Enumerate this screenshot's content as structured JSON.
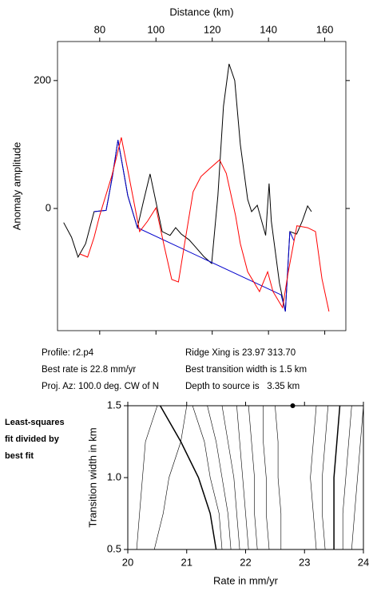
{
  "chart_data": [
    {
      "type": "line",
      "xlabel": "Distance (km)",
      "ylabel": "Anomaly amplitude",
      "xlim": [
        65,
        167.5
      ],
      "ylim": [
        -191,
        261
      ],
      "xticks": [
        80,
        100,
        120,
        140,
        160
      ],
      "yticks": [
        0,
        200
      ],
      "series": [
        {
          "color": "#000000",
          "x": [
            67.2,
            70,
            72.3,
            75,
            78,
            82.3,
            84.5,
            86.5,
            88,
            90,
            93.4,
            95.5,
            97.9,
            100,
            102.2,
            104,
            105,
            107,
            109,
            111.8,
            114,
            117,
            119.8,
            122,
            124,
            126,
            128,
            130,
            132.6,
            134,
            136,
            139,
            140.2,
            141,
            143.9,
            146,
            147.6,
            150,
            152,
            153.9,
            155.3
          ],
          "values": [
            -22,
            -45,
            -76,
            -55,
            -5,
            -3,
            50,
            107,
            70,
            20,
            -30,
            10,
            54,
            10,
            -36,
            -40,
            -42,
            -30,
            -40,
            -49,
            -60,
            -75,
            -86,
            20,
            160,
            226,
            200,
            100,
            14,
            -5,
            5,
            -42,
            39,
            -20,
            -117,
            -161,
            -36,
            -40,
            -20,
            4,
            -5
          ]
        },
        {
          "color": "#0000cc",
          "x": [
            78,
            82.3,
            84.5,
            86.5,
            88,
            90,
            93.4,
            144.5,
            146,
            147.6,
            149
          ],
          "values": [
            -5,
            -3,
            50,
            107,
            70,
            20,
            -30,
            -135,
            -161,
            -36,
            -50
          ]
        },
        {
          "color": "#ff0000",
          "x": [
            72.9,
            75.7,
            78,
            80,
            84.3,
            87.7,
            90,
            94.2,
            97,
            100,
            103,
            105.6,
            108,
            110,
            113.2,
            116,
            119,
            122.6,
            125,
            128.3,
            130,
            132.6,
            136.8,
            139.7,
            141.6,
            145,
            147,
            150.1,
            153.9,
            156.7,
            159,
            161.5
          ],
          "values": [
            -71,
            -76,
            -45,
            -11,
            51,
            111,
            60,
            -36,
            -20,
            1,
            -60,
            -111,
            -115,
            -60,
            26,
            50,
            62,
            76,
            55,
            -11,
            -55,
            -99,
            -130,
            -99,
            -130,
            -155,
            -100,
            -27,
            -30,
            -36,
            -110,
            -161
          ]
        }
      ],
      "info": [
        "Profile: r2.p4",
        "Best rate is 22.8 mm/yr",
        "Proj. Az: 100.0 deg. CW of N",
        "Ridge Xing is 23.97 313.70",
        "Best transition width is 1.5 km",
        "Depth to source is   3.35 km"
      ],
      "side_label": [
        "Least-squares",
        "fit divided by",
        "best fit"
      ]
    },
    {
      "type": "contour",
      "xlabel": "Rate in mm/yr",
      "ylabel": "Transition width in km",
      "xlim": [
        20,
        24
      ],
      "ylim": [
        0.5,
        1.5
      ],
      "xticks": [
        20,
        21,
        22,
        23,
        24
      ],
      "yticks": [
        {
          "value": 0.5,
          "label": "0.5"
        },
        {
          "value": 1,
          "label": "1.0"
        },
        {
          "value": 1.5,
          "label": "1.5"
        }
      ],
      "y": [
        0.5,
        0.75,
        1,
        1.25,
        1.5
      ],
      "contours": [
        [
          20.15,
          20.2,
          20.25,
          20.3,
          20.5
        ],
        [
          20.45,
          20.6,
          20.7,
          20.9,
          21.0
        ],
        [
          21.5,
          21.4,
          21.2,
          20.9,
          20.55
        ],
        [
          21.6,
          21.55,
          21.4,
          21.3,
          21.1
        ],
        [
          21.75,
          21.7,
          21.6,
          21.5,
          21.35
        ],
        [
          21.9,
          21.85,
          21.8,
          21.7,
          21.6
        ],
        [
          22.05,
          22.0,
          21.95,
          21.9,
          21.85
        ],
        [
          22.2,
          22.15,
          22.15,
          22.1,
          22.05
        ],
        [
          22.4,
          22.35,
          22.35,
          22.3,
          22.3
        ],
        [
          22.6,
          22.6,
          22.55,
          22.55,
          22.5
        ],
        [
          23.2,
          23.15,
          23.1,
          23.15,
          23.2
        ],
        [
          23.35,
          23.3,
          23.3,
          23.35,
          23.4
        ],
        [
          23.5,
          23.5,
          23.5,
          23.55,
          23.6
        ],
        [
          23.65,
          23.65,
          23.7,
          23.75,
          23.8
        ],
        [
          23.8,
          23.85,
          23.9,
          23.95,
          24.0
        ]
      ],
      "bold_contours": [
        2,
        12
      ],
      "best_fit": {
        "x": 22.8,
        "y": 1.5
      }
    }
  ]
}
